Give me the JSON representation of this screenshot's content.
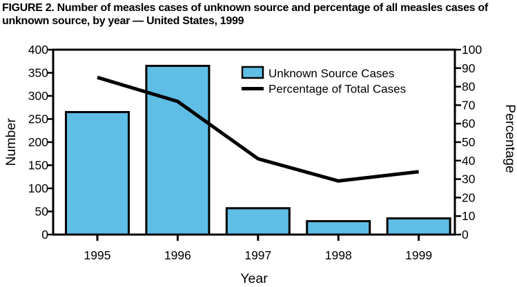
{
  "figure": {
    "title": "FIGURE 2. Number of measles cases of unknown source and percentage of all measles cases of unknown source, by year — United States, 1999"
  },
  "chart_data": {
    "type": "bar",
    "subtype": "combo-bar-line-dual-axis",
    "categories": [
      "1995",
      "1996",
      "1997",
      "1998",
      "1999"
    ],
    "series": [
      {
        "name": "Unknown Source Cases",
        "type": "bar",
        "axis": "left",
        "values": [
          265,
          365,
          57,
          29,
          35
        ],
        "color": "#5EBEE5"
      },
      {
        "name": "Percentage of Total Cases",
        "type": "line",
        "axis": "right",
        "values": [
          85,
          72,
          41,
          29,
          34
        ],
        "color": "#000000"
      }
    ],
    "xlabel": "Year",
    "ylabel_left": "Number",
    "ylabel_right": "Percentage",
    "ylim_left": [
      0,
      400
    ],
    "ytick_step_left": 50,
    "ylim_right": [
      0,
      100
    ],
    "ytick_step_right": 10,
    "grid": false,
    "legend_position": "top-right-inside",
    "frame_color": "#000000"
  }
}
